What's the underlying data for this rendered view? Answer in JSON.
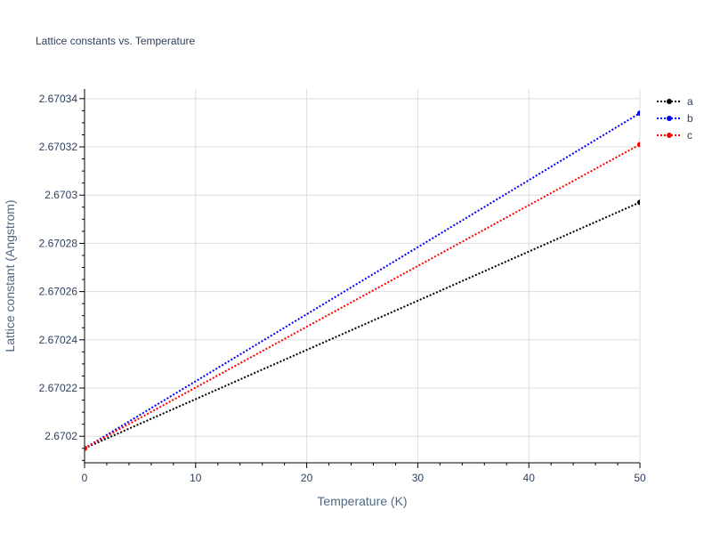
{
  "chart_data": {
    "type": "line",
    "title": "Lattice constants vs. Temperature",
    "xlabel": "Temperature (K)",
    "ylabel": "Lattice constant (Angstrom)",
    "xlim": [
      0,
      50
    ],
    "ylim": [
      2.670189,
      2.670344
    ],
    "xticks": [
      0,
      10,
      20,
      30,
      40,
      50
    ],
    "xtick_labels": [
      "0",
      "10",
      "20",
      "30",
      "40",
      "50"
    ],
    "yticks": [
      2.6702,
      2.67022,
      2.67024,
      2.67026,
      2.67028,
      2.6703,
      2.67032,
      2.67034
    ],
    "ytick_labels": [
      "2.6702",
      "2.67022",
      "2.67024",
      "2.67026",
      "2.67028",
      "2.6703",
      "2.67032",
      "2.67034"
    ],
    "grid": true,
    "legend_position": "top-right",
    "x": [
      0,
      50
    ],
    "series": [
      {
        "name": "a",
        "color": "#000000",
        "values": [
          2.670195,
          2.670297
        ]
      },
      {
        "name": "b",
        "color": "#0000ff",
        "values": [
          2.670195,
          2.670334
        ]
      },
      {
        "name": "c",
        "color": "#ff0000",
        "values": [
          2.670195,
          2.670321
        ]
      }
    ]
  }
}
